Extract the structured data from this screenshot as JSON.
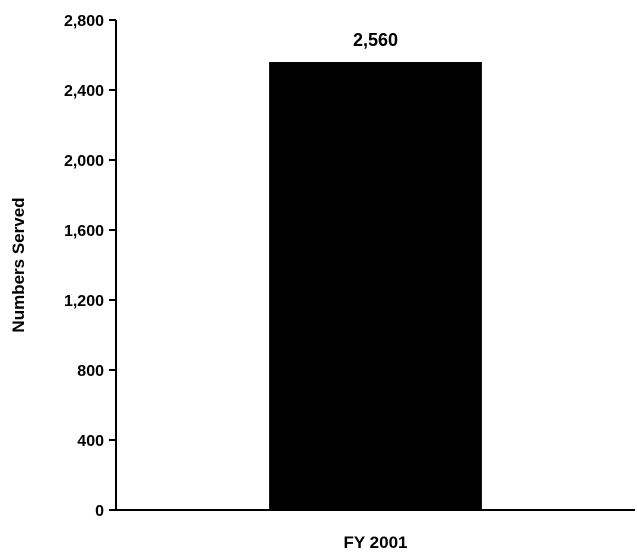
{
  "chart_data": {
    "type": "bar",
    "categories": [
      "FY 2001"
    ],
    "values": [
      2560
    ],
    "value_labels": [
      "2,560"
    ],
    "ylabel": "Numbers Served",
    "xlabel": "",
    "ylim": [
      0,
      2800
    ],
    "yticks": [
      0,
      400,
      800,
      1200,
      1600,
      2000,
      2400,
      2800
    ],
    "ytick_labels": [
      "0",
      "400",
      "800",
      "1,200",
      "1,600",
      "2,000",
      "2,400",
      "2,800"
    ],
    "grid": false,
    "legend": "none",
    "bar_color": "#000000"
  }
}
